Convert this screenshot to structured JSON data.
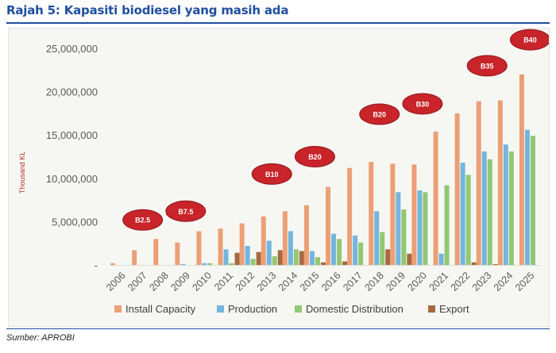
{
  "header": {
    "title": "Rajah 5: Kapasiti biodiesel yang masih ada"
  },
  "footer": {
    "source": "Sumber: APROBI"
  },
  "colors": {
    "install": "#ec9f76",
    "production": "#73b5dc",
    "domestic": "#92c774",
    "export": "#a6693f",
    "badge": "#c8242a",
    "axis_text": "#595959",
    "ylabel": "#b8332e"
  },
  "chart_data": {
    "type": "bar",
    "title": "Kapasiti biodiesel yang masih ada",
    "xlabel": "",
    "ylabel": "Thousand KL",
    "ylim": [
      0,
      25000000
    ],
    "yticks": [
      "-",
      "5,000,000",
      "10,000,000",
      "15,000,000",
      "20,000,000",
      "25,000,000"
    ],
    "grid": false,
    "legend_position": "bottom",
    "categories": [
      "2006",
      "2007",
      "2008",
      "2009",
      "2010",
      "2011",
      "2012",
      "2013",
      "2014",
      "2015",
      "2016",
      "2017",
      "2018",
      "2019",
      "2020",
      "2021",
      "2022",
      "2023",
      "2024",
      "2025"
    ],
    "series": [
      {
        "name": "Install Capacity",
        "values": [
          200000,
          1700000,
          3000000,
          2600000,
          3900000,
          4200000,
          4800000,
          5600000,
          6200000,
          6900000,
          9000000,
          11200000,
          11900000,
          11700000,
          11600000,
          15400000,
          17500000,
          18900000,
          19000000,
          22000000
        ]
      },
      {
        "name": "Production",
        "values": [
          0,
          0,
          0,
          100000,
          200000,
          1800000,
          2200000,
          2800000,
          3900000,
          1600000,
          3600000,
          3400000,
          6200000,
          8400000,
          8600000,
          1300000,
          11800000,
          13100000,
          13900000,
          15600000
        ]
      },
      {
        "name": "Domestic Distribution",
        "values": [
          0,
          0,
          0,
          0,
          200000,
          200000,
          700000,
          1000000,
          1800000,
          900000,
          3000000,
          2600000,
          3800000,
          6400000,
          8400000,
          9200000,
          10400000,
          12200000,
          13100000,
          14900000
        ]
      },
      {
        "name": "Export",
        "values": [
          0,
          0,
          0,
          0,
          0,
          1400000,
          1500000,
          1700000,
          1600000,
          300000,
          400000,
          0,
          1800000,
          1300000,
          0,
          0,
          300000,
          100000,
          0,
          0
        ]
      }
    ],
    "annotations": [
      {
        "label": "B2.5",
        "category": "2007",
        "value": 5200000
      },
      {
        "label": "B7.5",
        "category": "2009",
        "value": 6200000
      },
      {
        "label": "B10",
        "category": "2013",
        "value": 10500000
      },
      {
        "label": "B20",
        "category": "2015",
        "value": 12500000
      },
      {
        "label": "B20",
        "category": "2018",
        "value": 17400000
      },
      {
        "label": "B30",
        "category": "2020",
        "value": 18600000
      },
      {
        "label": "B35",
        "category": "2023",
        "value": 23000000
      },
      {
        "label": "B40",
        "category": "2025",
        "value": 26000000
      }
    ]
  }
}
